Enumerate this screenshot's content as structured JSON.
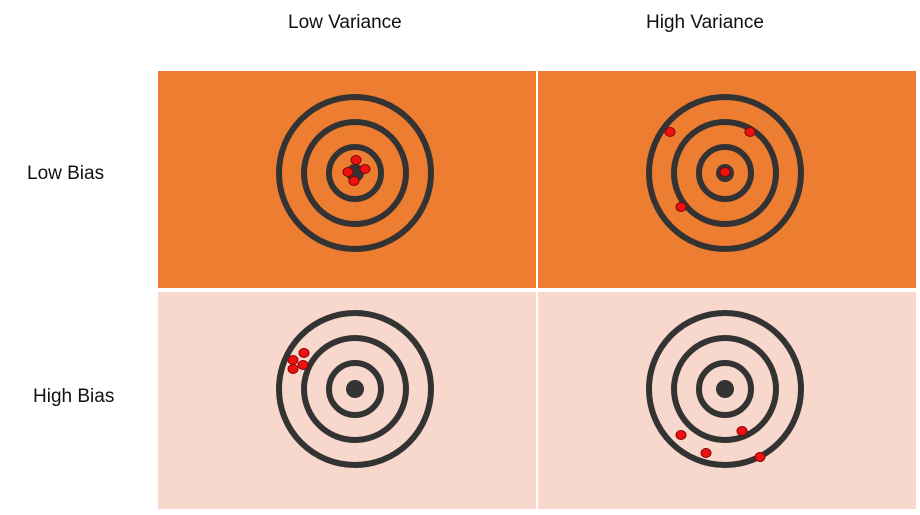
{
  "columns": {
    "low_variance": "Low Variance",
    "high_variance": "High Variance"
  },
  "rows": {
    "low_bias": "Low Bias",
    "high_bias": "High Bias"
  },
  "colors": {
    "low_bias_background": "#ED7D31",
    "high_bias_background": "#F8D7CC",
    "ring": "#333333",
    "hit": "#EE1111",
    "hit_outline": "#8B0000"
  }
}
